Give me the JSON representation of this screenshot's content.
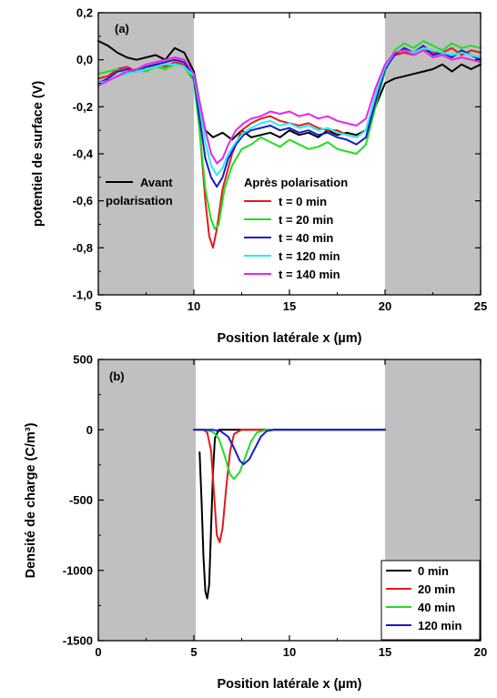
{
  "colors": {
    "black": "#000000",
    "red": "#e41a1a",
    "green": "#22dd22",
    "blue": "#1a1acc",
    "cyan": "#22eeee",
    "magenta": "#ee22ee",
    "shade": "#c0c0c0"
  },
  "chart_data": [
    {
      "type": "line",
      "panel_label": "(a)",
      "xlabel": "Position latérale x (µm)",
      "ylabel": "potentiel de surface (V)",
      "xlim": [
        5,
        25
      ],
      "ylim": [
        -1.0,
        0.2
      ],
      "x_ticks": [
        5,
        10,
        15,
        20,
        25
      ],
      "x_tick_labels": [
        "5",
        "10",
        "15",
        "20",
        "25"
      ],
      "y_ticks": [
        -1.0,
        -0.8,
        -0.6,
        -0.4,
        -0.2,
        0.0,
        0.2
      ],
      "y_tick_labels": [
        "-1,0",
        "-0,8",
        "-0,6",
        "-0,4",
        "-0,2",
        "0,0",
        "0,2"
      ],
      "shaded_x_ranges": [
        [
          5,
          10
        ],
        [
          20,
          25
        ]
      ],
      "grid": false,
      "legend_before": {
        "line1": "Avant",
        "line2": "polarisation"
      },
      "legend_title": "Après polarisation",
      "legend_placement": "center",
      "series": [
        {
          "name": "Avant polarisation",
          "color_key": "black",
          "x": [
            5.0,
            5.5,
            6.0,
            6.5,
            7.0,
            7.5,
            8.0,
            8.5,
            9.0,
            9.5,
            10.0,
            10.3,
            10.6,
            11.0,
            11.5,
            12.0,
            12.5,
            13.0,
            13.5,
            14.0,
            14.5,
            15.0,
            15.5,
            16.0,
            16.5,
            17.0,
            17.5,
            18.0,
            18.5,
            19.0,
            19.5,
            20.0,
            20.5,
            21.0,
            21.5,
            22.0,
            22.5,
            23.0,
            23.5,
            24.0,
            24.5,
            25.0
          ],
          "y": [
            0.08,
            0.06,
            0.03,
            0.01,
            0.0,
            0.01,
            0.02,
            0.0,
            0.05,
            0.03,
            -0.05,
            -0.18,
            -0.3,
            -0.33,
            -0.31,
            -0.34,
            -0.3,
            -0.33,
            -0.32,
            -0.31,
            -0.33,
            -0.3,
            -0.32,
            -0.31,
            -0.33,
            -0.3,
            -0.32,
            -0.31,
            -0.32,
            -0.3,
            -0.2,
            -0.1,
            -0.08,
            -0.07,
            -0.06,
            -0.05,
            -0.04,
            -0.02,
            -0.05,
            -0.02,
            -0.04,
            -0.02
          ]
        },
        {
          "name": "t = 0 min",
          "color_key": "red",
          "x": [
            5.0,
            5.5,
            6.0,
            6.5,
            7.0,
            7.5,
            8.0,
            8.5,
            9.0,
            9.5,
            10.0,
            10.3,
            10.6,
            10.8,
            11.0,
            11.2,
            11.5,
            12.0,
            12.5,
            13.0,
            13.5,
            14.0,
            14.5,
            15.0,
            15.5,
            16.0,
            16.5,
            17.0,
            17.5,
            18.0,
            18.5,
            19.0,
            19.5,
            20.0,
            20.5,
            21.0,
            21.5,
            22.0,
            22.5,
            23.0,
            23.5,
            24.0,
            24.5,
            25.0
          ],
          "y": [
            -0.08,
            -0.07,
            -0.04,
            -0.03,
            -0.05,
            -0.04,
            -0.02,
            -0.03,
            -0.01,
            -0.02,
            -0.08,
            -0.3,
            -0.6,
            -0.75,
            -0.8,
            -0.72,
            -0.55,
            -0.4,
            -0.3,
            -0.27,
            -0.25,
            -0.24,
            -0.26,
            -0.27,
            -0.28,
            -0.27,
            -0.29,
            -0.3,
            -0.3,
            -0.32,
            -0.33,
            -0.3,
            -0.15,
            -0.02,
            0.02,
            0.03,
            0.02,
            0.04,
            0.03,
            0.03,
            0.05,
            0.02,
            0.04,
            0.03
          ]
        },
        {
          "name": "t = 20 min",
          "color_key": "green",
          "x": [
            5.0,
            5.5,
            6.0,
            6.5,
            7.0,
            7.5,
            8.0,
            8.5,
            9.0,
            9.5,
            10.0,
            10.3,
            10.6,
            10.9,
            11.1,
            11.3,
            11.6,
            12.0,
            12.5,
            13.0,
            13.5,
            14.0,
            14.5,
            15.0,
            15.5,
            16.0,
            16.5,
            17.0,
            17.5,
            18.0,
            18.5,
            19.0,
            19.5,
            20.0,
            20.5,
            21.0,
            21.5,
            22.0,
            22.5,
            23.0,
            23.5,
            24.0,
            24.5,
            25.0
          ],
          "y": [
            -0.06,
            -0.05,
            -0.04,
            -0.06,
            -0.04,
            -0.05,
            -0.03,
            -0.04,
            -0.02,
            -0.03,
            -0.09,
            -0.3,
            -0.55,
            -0.68,
            -0.72,
            -0.7,
            -0.55,
            -0.45,
            -0.38,
            -0.36,
            -0.33,
            -0.35,
            -0.37,
            -0.34,
            -0.36,
            -0.38,
            -0.37,
            -0.35,
            -0.38,
            -0.39,
            -0.4,
            -0.36,
            -0.2,
            -0.05,
            0.04,
            0.07,
            0.05,
            0.08,
            0.06,
            0.04,
            0.07,
            0.05,
            0.06,
            0.05
          ]
        },
        {
          "name": "t = 40 min",
          "color_key": "blue",
          "x": [
            5.0,
            5.5,
            6.0,
            6.5,
            7.0,
            7.5,
            8.0,
            8.5,
            9.0,
            9.5,
            10.0,
            10.3,
            10.6,
            10.9,
            11.2,
            11.5,
            11.8,
            12.2,
            12.6,
            13.0,
            13.5,
            14.0,
            14.5,
            15.0,
            15.5,
            16.0,
            16.5,
            17.0,
            17.5,
            18.0,
            18.5,
            19.0,
            19.5,
            20.0,
            20.5,
            21.0,
            21.5,
            22.0,
            22.5,
            23.0,
            23.5,
            24.0,
            24.5,
            25.0
          ],
          "y": [
            -0.1,
            -0.08,
            -0.05,
            -0.04,
            -0.05,
            -0.03,
            -0.02,
            -0.01,
            0.0,
            -0.01,
            -0.08,
            -0.25,
            -0.42,
            -0.5,
            -0.54,
            -0.5,
            -0.42,
            -0.36,
            -0.32,
            -0.3,
            -0.29,
            -0.28,
            -0.3,
            -0.29,
            -0.31,
            -0.3,
            -0.32,
            -0.31,
            -0.33,
            -0.34,
            -0.36,
            -0.33,
            -0.18,
            -0.04,
            0.02,
            0.05,
            0.03,
            0.06,
            0.02,
            0.03,
            0.01,
            0.04,
            0.02,
            0.0
          ]
        },
        {
          "name": "t = 120 min",
          "color_key": "cyan",
          "x": [
            5.0,
            5.5,
            6.0,
            6.5,
            7.0,
            7.5,
            8.0,
            8.5,
            9.0,
            9.5,
            10.0,
            10.3,
            10.6,
            10.9,
            11.2,
            11.5,
            11.8,
            12.2,
            12.6,
            13.0,
            13.5,
            14.0,
            14.5,
            15.0,
            15.5,
            16.0,
            16.5,
            17.0,
            17.5,
            18.0,
            18.5,
            19.0,
            19.5,
            20.0,
            20.5,
            21.0,
            21.5,
            22.0,
            22.5,
            23.0,
            23.5,
            24.0,
            24.5,
            25.0
          ],
          "y": [
            -0.1,
            -0.09,
            -0.07,
            -0.06,
            -0.05,
            -0.04,
            -0.03,
            -0.02,
            -0.02,
            -0.03,
            -0.07,
            -0.2,
            -0.35,
            -0.45,
            -0.49,
            -0.46,
            -0.4,
            -0.35,
            -0.31,
            -0.29,
            -0.27,
            -0.26,
            -0.28,
            -0.27,
            -0.29,
            -0.28,
            -0.3,
            -0.29,
            -0.31,
            -0.32,
            -0.33,
            -0.3,
            -0.15,
            -0.03,
            0.03,
            0.04,
            0.03,
            0.05,
            0.04,
            0.03,
            0.02,
            0.03,
            0.02,
            0.01
          ]
        },
        {
          "name": "t = 140 min",
          "color_key": "magenta",
          "x": [
            5.0,
            5.5,
            6.0,
            6.5,
            7.0,
            7.5,
            8.0,
            8.5,
            9.0,
            9.5,
            10.0,
            10.3,
            10.6,
            10.9,
            11.2,
            11.5,
            11.8,
            12.2,
            12.6,
            13.0,
            13.5,
            14.0,
            14.5,
            15.0,
            15.5,
            16.0,
            16.5,
            17.0,
            17.5,
            18.0,
            18.5,
            19.0,
            19.5,
            20.0,
            20.5,
            21.0,
            21.5,
            22.0,
            22.5,
            23.0,
            23.5,
            24.0,
            24.5,
            25.0
          ],
          "y": [
            -0.11,
            -0.09,
            -0.07,
            -0.05,
            -0.04,
            -0.02,
            -0.01,
            0.0,
            0.01,
            0.0,
            -0.06,
            -0.18,
            -0.3,
            -0.4,
            -0.44,
            -0.42,
            -0.36,
            -0.3,
            -0.27,
            -0.25,
            -0.24,
            -0.22,
            -0.23,
            -0.22,
            -0.24,
            -0.23,
            -0.25,
            -0.24,
            -0.26,
            -0.27,
            -0.28,
            -0.25,
            -0.12,
            -0.02,
            0.03,
            0.04,
            0.02,
            0.04,
            0.01,
            0.02,
            0.0,
            0.01,
            0.0,
            -0.01
          ]
        }
      ]
    },
    {
      "type": "line",
      "panel_label": "(b)",
      "xlabel": "Position latérale x (µm)",
      "ylabel": "Densité de charge (C/m³)",
      "xlim": [
        0,
        20
      ],
      "ylim": [
        -1500,
        500
      ],
      "x_ticks": [
        0,
        5,
        10,
        15,
        20
      ],
      "x_tick_labels": [
        "0",
        "5",
        "10",
        "15",
        "20"
      ],
      "y_ticks": [
        -1500,
        -1000,
        -500,
        0,
        500
      ],
      "y_tick_labels": [
        "-1500",
        "-1000",
        "-500",
        "0",
        "500"
      ],
      "shaded_x_ranges": [
        [
          0,
          5.1
        ],
        [
          15,
          20
        ]
      ],
      "grid": false,
      "legend_placement": "bottom-right",
      "series": [
        {
          "name": "0 min",
          "color_key": "black",
          "x": [
            5.3,
            5.4,
            5.5,
            5.6,
            5.7,
            5.8,
            5.9,
            6.0,
            6.1,
            6.3,
            6.5,
            15.0
          ],
          "y": [
            -160,
            -500,
            -900,
            -1150,
            -1200,
            -1100,
            -700,
            -300,
            -60,
            0,
            0,
            0
          ]
        },
        {
          "name": "20 min",
          "color_key": "red",
          "x": [
            5.0,
            5.5,
            5.7,
            5.9,
            6.05,
            6.2,
            6.35,
            6.5,
            6.7,
            6.9,
            7.1,
            7.5,
            15.0
          ],
          "y": [
            0,
            0,
            -20,
            -150,
            -450,
            -750,
            -800,
            -700,
            -400,
            -150,
            -30,
            0,
            0
          ]
        },
        {
          "name": "40 min",
          "color_key": "green",
          "x": [
            5.0,
            5.6,
            6.0,
            6.3,
            6.6,
            6.9,
            7.1,
            7.4,
            7.7,
            8.0,
            8.3,
            8.8,
            15.0
          ],
          "y": [
            0,
            0,
            -15,
            -60,
            -180,
            -320,
            -350,
            -300,
            -190,
            -80,
            -20,
            0,
            0
          ]
        },
        {
          "name": "120 min",
          "color_key": "blue",
          "x": [
            5.0,
            6.0,
            6.4,
            6.8,
            7.1,
            7.4,
            7.6,
            7.9,
            8.2,
            8.5,
            8.8,
            9.2,
            15.0
          ],
          "y": [
            0,
            0,
            -10,
            -50,
            -130,
            -220,
            -245,
            -210,
            -130,
            -50,
            -10,
            0,
            0
          ]
        }
      ]
    }
  ]
}
